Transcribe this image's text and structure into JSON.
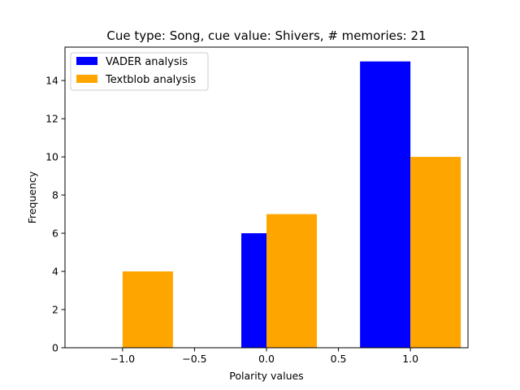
{
  "chart_data": {
    "type": "bar",
    "title": "Cue type: Song, cue value: Shivers, # memories: 21",
    "xlabel": "Polarity values",
    "ylabel": "Frequency",
    "xlim": [
      -1.4,
      1.4
    ],
    "ylim": [
      0,
      15.75
    ],
    "xticks": [
      -1.0,
      -0.5,
      0.0,
      0.5,
      1.0
    ],
    "xtick_labels": [
      "−1.0",
      "−0.5",
      "0.0",
      "0.5",
      "1.0"
    ],
    "yticks": [
      0,
      2,
      4,
      6,
      8,
      10,
      12,
      14
    ],
    "ytick_labels": [
      "0",
      "2",
      "4",
      "6",
      "8",
      "10",
      "12",
      "14"
    ],
    "grid": false,
    "legend_position": "top-left",
    "bar_width": 0.35,
    "series": [
      {
        "name": "VADER analysis",
        "color": "#0000ff",
        "bars": [
          {
            "x": -0.35,
            "value": 0
          },
          {
            "x": -0.175,
            "value": 6
          },
          {
            "x": 0.65,
            "value": 15
          }
        ]
      },
      {
        "name": "Textblob analysis",
        "color": "#ffa500",
        "bars": [
          {
            "x": -1.0,
            "value": 4
          },
          {
            "x": 0.0,
            "value": 7
          },
          {
            "x": 1.0,
            "value": 10
          }
        ]
      }
    ]
  }
}
